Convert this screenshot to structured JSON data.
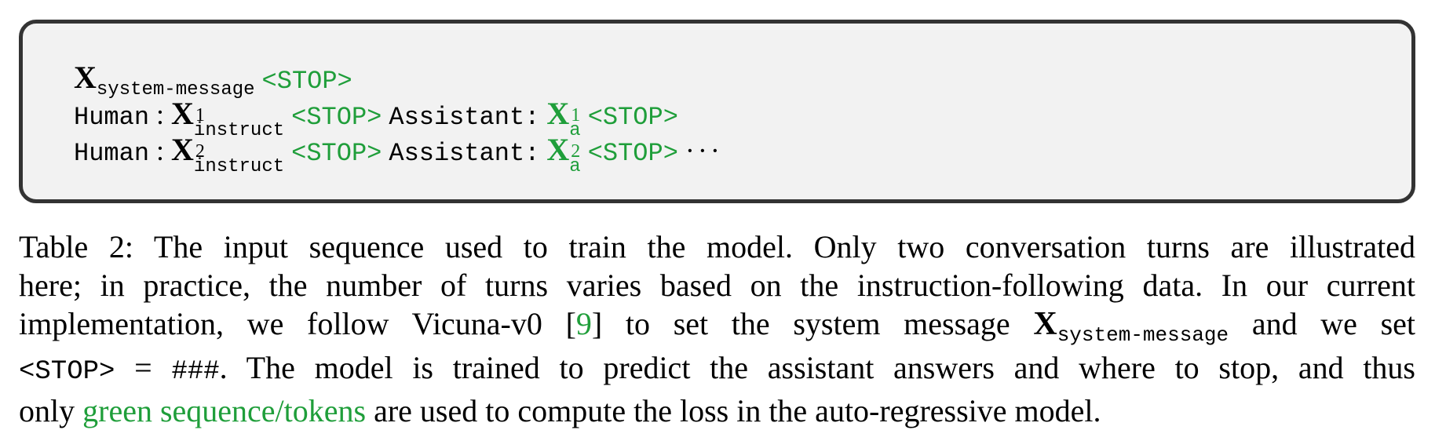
{
  "sequence": {
    "x_symbol": "X",
    "system_message_sub": "system-message",
    "stop_token": "<STOP>",
    "human_label": "Human",
    "colon": ":",
    "assistant_label": "Assistant:",
    "instruct_sub": "instruct",
    "answer_sub": "a",
    "turn_1": "1",
    "turn_2": "2",
    "ellipsis": "···"
  },
  "caption": {
    "line1": "Table 2: The input sequence used to train the model. Only two conversation turns are illustrated",
    "line2": "here; in practice, the number of turns varies based on the instruction-following data. In our current",
    "line3_a": "implementation, we follow Vicuna-v0 [",
    "citation": "9",
    "line3_b": "] to set the system message",
    "line3_x": "X",
    "line3_sub": "system-message",
    "line3_c": "and we set",
    "line4_stop": "<STOP>",
    "line4_eq": "=",
    "line4_hash": "###",
    "line4_rest": ". The model is trained to predict the assistant answers and where to stop, and thus",
    "line5_a": "only",
    "line5_green": "green sequence/tokens",
    "line5_b": "are used to compute the loss in the auto-regressive model."
  },
  "colors": {
    "green": "#1f9e3a",
    "box_background": "#f2f2f2",
    "box_border": "#333333"
  }
}
